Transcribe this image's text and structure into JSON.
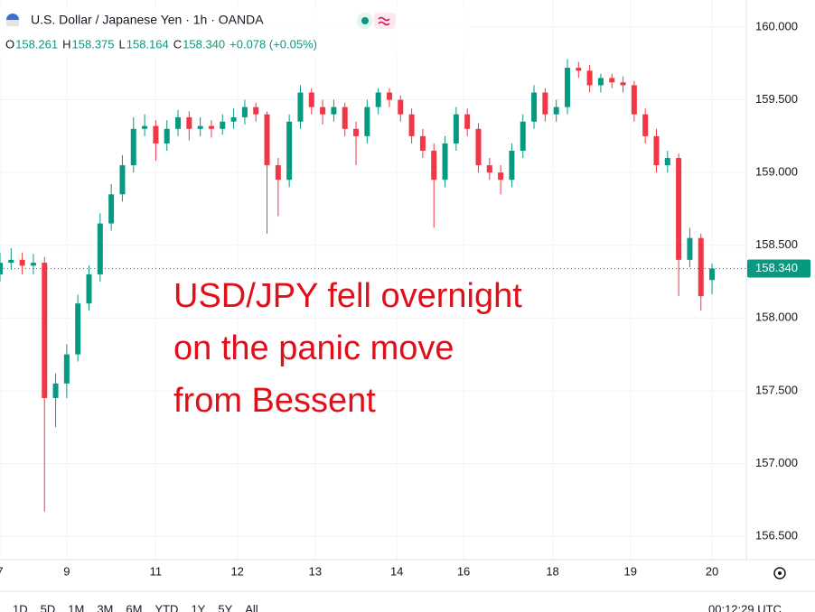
{
  "chart_data": {
    "type": "candlestick",
    "title": "U.S. Dollar / Japanese Yen · 1h · OANDA",
    "legend_ohlc": [
      {
        "key": "O",
        "value": 158.261,
        "label": "158.261"
      },
      {
        "key": "H",
        "value": 158.375,
        "label": "158.375"
      },
      {
        "key": "L",
        "value": 158.164,
        "label": "158.164"
      },
      {
        "key": "C",
        "value": 158.34,
        "label": "158.340"
      }
    ],
    "change": "+0.078 (+0.05%)",
    "annotation": [
      "USD/JPY fell overnight",
      "on the panic move",
      "from Bessent"
    ],
    "price_label": {
      "value": 158.34,
      "label": "158.340"
    },
    "up_color": "#089981",
    "down_color": "#f23645",
    "grid": true,
    "xlim": [
      0,
      201
    ],
    "ylim": [
      156.339,
      160.186
    ],
    "xticks": [
      {
        "value": 0,
        "label": "7"
      },
      {
        "value": 18,
        "label": "9"
      },
      {
        "value": 42,
        "label": "11"
      },
      {
        "value": 64,
        "label": "12"
      },
      {
        "value": 85,
        "label": "13"
      },
      {
        "value": 107,
        "label": "14"
      },
      {
        "value": 125,
        "label": "16"
      },
      {
        "value": 149,
        "label": "18"
      },
      {
        "value": 170,
        "label": "19"
      },
      {
        "value": 192,
        "label": "20"
      }
    ],
    "yticks": [
      {
        "value": 156.5,
        "label": "156.500"
      },
      {
        "value": 157,
        "label": "157.000"
      },
      {
        "value": 157.5,
        "label": "157.500"
      },
      {
        "value": 158,
        "label": "158.000"
      },
      {
        "value": 158.5,
        "label": "158.500"
      },
      {
        "value": 159,
        "label": "159.000"
      },
      {
        "value": 159.5,
        "label": "159.500"
      },
      {
        "value": 160,
        "label": "160.000"
      }
    ],
    "x": [
      0,
      3,
      6,
      9,
      12,
      15,
      18,
      21,
      24,
      27,
      30,
      33,
      36,
      39,
      42,
      45,
      48,
      51,
      54,
      57,
      60,
      63,
      66,
      69,
      72,
      75,
      78,
      81,
      84,
      87,
      90,
      93,
      96,
      99,
      102,
      105,
      108,
      111,
      114,
      117,
      120,
      123,
      126,
      129,
      132,
      135,
      138,
      141,
      144,
      147,
      150,
      153,
      156,
      159,
      162,
      165,
      168,
      171,
      174,
      177,
      180,
      183,
      186,
      189,
      192
    ],
    "open": [
      158.3,
      158.38,
      158.4,
      158.36,
      158.38,
      157.45,
      157.55,
      157.75,
      158.1,
      158.3,
      158.65,
      158.85,
      159.05,
      159.3,
      159.32,
      159.2,
      159.3,
      159.38,
      159.3,
      159.32,
      159.3,
      159.35,
      159.38,
      159.45,
      159.4,
      159.05,
      158.95,
      159.35,
      159.55,
      159.45,
      159.4,
      159.45,
      159.3,
      159.25,
      159.45,
      159.55,
      159.5,
      159.4,
      159.25,
      159.15,
      158.95,
      159.2,
      159.4,
      159.3,
      159.05,
      159.0,
      158.95,
      159.15,
      159.35,
      159.55,
      159.4,
      159.45,
      159.72,
      159.7,
      159.6,
      159.65,
      159.62,
      159.6,
      159.4,
      159.25,
      159.05,
      159.1,
      158.4,
      158.55,
      158.261
    ],
    "high": [
      158.45,
      158.48,
      158.45,
      158.44,
      158.42,
      157.62,
      157.82,
      158.16,
      158.36,
      158.72,
      158.92,
      159.12,
      159.38,
      159.4,
      159.36,
      159.36,
      159.43,
      159.42,
      159.38,
      159.36,
      159.4,
      159.44,
      159.5,
      159.48,
      159.42,
      159.1,
      159.4,
      159.6,
      159.58,
      159.5,
      159.5,
      159.48,
      159.35,
      159.5,
      159.58,
      159.58,
      159.53,
      159.44,
      159.3,
      159.2,
      159.25,
      159.45,
      159.44,
      159.34,
      159.1,
      159.05,
      159.2,
      159.4,
      159.6,
      159.58,
      159.5,
      159.78,
      159.76,
      159.74,
      159.68,
      159.68,
      159.66,
      159.63,
      159.44,
      159.3,
      159.15,
      159.13,
      158.62,
      158.58,
      158.375
    ],
    "low": [
      158.25,
      158.33,
      158.3,
      158.3,
      156.67,
      157.25,
      157.45,
      157.7,
      158.05,
      158.25,
      158.6,
      158.8,
      159.0,
      159.25,
      159.08,
      159.15,
      159.25,
      159.22,
      159.25,
      159.24,
      159.26,
      159.3,
      159.33,
      159.35,
      158.58,
      158.7,
      158.9,
      159.3,
      159.4,
      159.33,
      159.35,
      159.25,
      159.05,
      159.2,
      159.4,
      159.45,
      159.35,
      159.2,
      159.1,
      158.62,
      158.9,
      159.15,
      159.25,
      159.0,
      158.95,
      158.85,
      158.9,
      159.1,
      159.3,
      159.35,
      159.35,
      159.4,
      159.65,
      159.55,
      159.55,
      159.58,
      159.55,
      159.35,
      159.2,
      159.0,
      159.0,
      158.15,
      158.35,
      158.05,
      158.164
    ],
    "close": [
      158.38,
      158.4,
      158.36,
      158.38,
      157.45,
      157.55,
      157.75,
      158.1,
      158.3,
      158.65,
      158.85,
      159.05,
      159.3,
      159.32,
      159.2,
      159.3,
      159.38,
      159.3,
      159.32,
      159.3,
      159.35,
      159.38,
      159.45,
      159.4,
      159.05,
      158.95,
      159.35,
      159.55,
      159.45,
      159.4,
      159.45,
      159.3,
      159.25,
      159.45,
      159.55,
      159.5,
      159.4,
      159.25,
      159.15,
      158.95,
      159.2,
      159.4,
      159.3,
      159.05,
      159.0,
      158.95,
      159.15,
      159.35,
      159.55,
      159.4,
      159.45,
      159.72,
      159.7,
      159.6,
      159.65,
      159.62,
      159.6,
      159.4,
      159.25,
      159.05,
      159.1,
      158.4,
      158.55,
      158.15,
      158.34
    ]
  },
  "toolbar": {
    "ranges": [
      "1D",
      "5D",
      "1M",
      "3M",
      "6M",
      "YTD",
      "1Y",
      "5Y",
      "All"
    ],
    "clock": "00:12:29 UTC"
  }
}
